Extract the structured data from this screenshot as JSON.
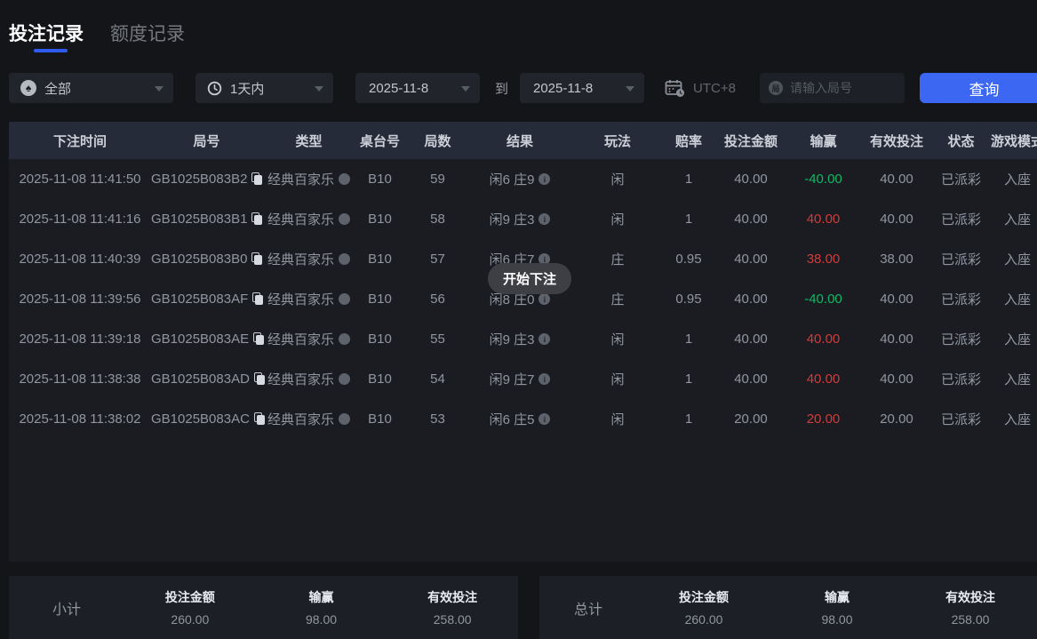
{
  "tabs": {
    "bet_records": "投注记录",
    "quota_records": "额度记录"
  },
  "filters": {
    "game_type": {
      "value": "全部",
      "icon": "spade-icon"
    },
    "time_range": {
      "value": "1天内",
      "icon": "clock-icon"
    },
    "date_from": "2025-11-8",
    "to_label": "到",
    "date_to": "2025-11-8",
    "timezone": "UTC+8",
    "round_input_placeholder": "请输入局号",
    "round_icon_char": "局",
    "search_button": "查询"
  },
  "toast": "开始下注",
  "table": {
    "columns": [
      "下注时间",
      "局号",
      "类型",
      "桌台号",
      "局数",
      "结果",
      "玩法",
      "赔率",
      "投注金额",
      "输赢",
      "有效投注",
      "状态",
      "游戏模式"
    ],
    "rows": [
      {
        "time": "2025-11-08 11:41:50",
        "round_id": "GB1025B083B2",
        "game": "经典百家乐",
        "table_no": "B10",
        "round_no": "59",
        "result": "闲6 庄9",
        "play": "闲",
        "odds": "1",
        "bet": "40.00",
        "win_lose": "-40.00",
        "win_lose_color": "green",
        "valid_bet": "40.00",
        "status": "已派彩",
        "mode": "入座"
      },
      {
        "time": "2025-11-08 11:41:16",
        "round_id": "GB1025B083B1",
        "game": "经典百家乐",
        "table_no": "B10",
        "round_no": "58",
        "result": "闲9 庄3",
        "play": "闲",
        "odds": "1",
        "bet": "40.00",
        "win_lose": "40.00",
        "win_lose_color": "red",
        "valid_bet": "40.00",
        "status": "已派彩",
        "mode": "入座"
      },
      {
        "time": "2025-11-08 11:40:39",
        "round_id": "GB1025B083B0",
        "game": "经典百家乐",
        "table_no": "B10",
        "round_no": "57",
        "result": "闲6 庄7",
        "play": "庄",
        "odds": "0.95",
        "bet": "40.00",
        "win_lose": "38.00",
        "win_lose_color": "red",
        "valid_bet": "38.00",
        "status": "已派彩",
        "mode": "入座"
      },
      {
        "time": "2025-11-08 11:39:56",
        "round_id": "GB1025B083AF",
        "game": "经典百家乐",
        "table_no": "B10",
        "round_no": "56",
        "result": "闲8 庄0",
        "play": "庄",
        "odds": "0.95",
        "bet": "40.00",
        "win_lose": "-40.00",
        "win_lose_color": "green",
        "valid_bet": "40.00",
        "status": "已派彩",
        "mode": "入座"
      },
      {
        "time": "2025-11-08 11:39:18",
        "round_id": "GB1025B083AE",
        "game": "经典百家乐",
        "table_no": "B10",
        "round_no": "55",
        "result": "闲9 庄3",
        "play": "闲",
        "odds": "1",
        "bet": "40.00",
        "win_lose": "40.00",
        "win_lose_color": "red",
        "valid_bet": "40.00",
        "status": "已派彩",
        "mode": "入座"
      },
      {
        "time": "2025-11-08 11:38:38",
        "round_id": "GB1025B083AD",
        "game": "经典百家乐",
        "table_no": "B10",
        "round_no": "54",
        "result": "闲9 庄7",
        "play": "闲",
        "odds": "1",
        "bet": "40.00",
        "win_lose": "40.00",
        "win_lose_color": "red",
        "valid_bet": "40.00",
        "status": "已派彩",
        "mode": "入座"
      },
      {
        "time": "2025-11-08 11:38:02",
        "round_id": "GB1025B083AC",
        "game": "经典百家乐",
        "table_no": "B10",
        "round_no": "53",
        "result": "闲6 庄5",
        "play": "闲",
        "odds": "1",
        "bet": "20.00",
        "win_lose": "20.00",
        "win_lose_color": "red",
        "valid_bet": "20.00",
        "status": "已派彩",
        "mode": "入座"
      }
    ]
  },
  "summary": {
    "subtotal": {
      "label": "小计",
      "items": [
        {
          "label": "投注金额",
          "value": "260.00",
          "color": "normal"
        },
        {
          "label": "输赢",
          "value": "98.00",
          "color": "red"
        },
        {
          "label": "有效投注",
          "value": "258.00",
          "color": "normal"
        }
      ]
    },
    "total": {
      "label": "总计",
      "items": [
        {
          "label": "投注金额",
          "value": "260.00",
          "color": "normal"
        },
        {
          "label": "输赢",
          "value": "98.00",
          "color": "red"
        },
        {
          "label": "有效投注",
          "value": "258.00",
          "color": "normal"
        }
      ]
    }
  },
  "colors": {
    "accent_blue": "#3c67f2",
    "win_red": "#d23b3b",
    "lose_green": "#0eb964",
    "header_bg": "#262b39"
  }
}
